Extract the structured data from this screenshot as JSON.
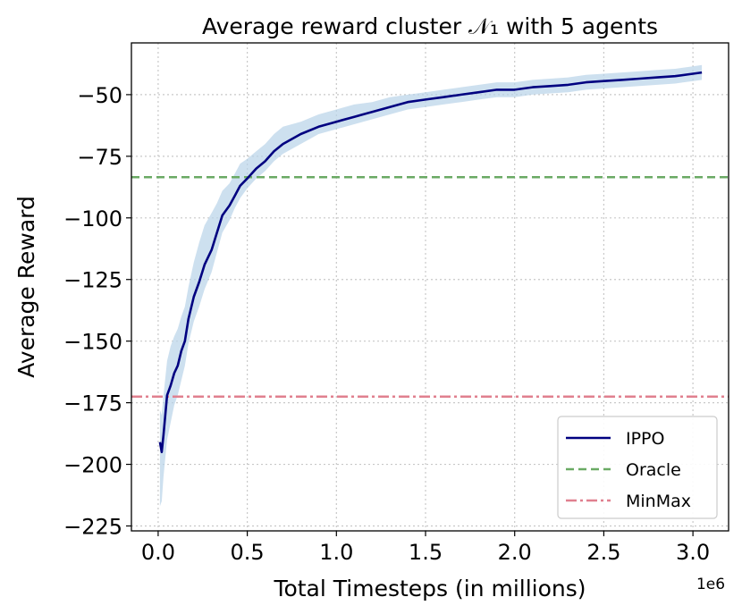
{
  "chart_data": {
    "type": "line",
    "title": "Average reward cluster 𝒩₁ with 5 agents",
    "xlabel": "Total Timesteps (in millions)",
    "ylabel": "Average Reward",
    "x_offset_label": "1e6",
    "xlim": [
      -0.15,
      3.2
    ],
    "ylim": [
      -227,
      -29
    ],
    "xticks": [
      0.0,
      0.5,
      1.0,
      1.5,
      2.0,
      2.5,
      3.0
    ],
    "xtick_labels": [
      "0.0",
      "0.5",
      "1.0",
      "1.5",
      "2.0",
      "2.5",
      "3.0"
    ],
    "yticks": [
      -225,
      -200,
      -175,
      -150,
      -125,
      -100,
      -75,
      -50
    ],
    "ytick_labels": [
      "−225",
      "−200",
      "−175",
      "−150",
      "−125",
      "−100",
      "−75",
      "−50"
    ],
    "grid": true,
    "legend_position": "lower-right",
    "colors": {
      "ippo": "#000080",
      "band": "#b8d3e8",
      "oracle": "#6aaa64",
      "minmax": "#e0808f"
    },
    "series": [
      {
        "name": "IPPO",
        "style": "solid",
        "x": [
          0.01,
          0.02,
          0.03,
          0.05,
          0.07,
          0.09,
          0.11,
          0.13,
          0.15,
          0.17,
          0.2,
          0.23,
          0.26,
          0.3,
          0.33,
          0.36,
          0.4,
          0.43,
          0.46,
          0.5,
          0.55,
          0.6,
          0.65,
          0.7,
          0.8,
          0.9,
          1.0,
          1.1,
          1.2,
          1.3,
          1.4,
          1.5,
          1.6,
          1.7,
          1.8,
          1.9,
          2.0,
          2.1,
          2.2,
          2.3,
          2.4,
          2.5,
          2.6,
          2.7,
          2.8,
          2.9,
          3.0,
          3.05
        ],
        "y": [
          -191,
          -195,
          -188,
          -172,
          -168,
          -163,
          -160,
          -154,
          -150,
          -141,
          -132,
          -126,
          -119,
          -113,
          -106,
          -99,
          -95,
          -91,
          -87,
          -84,
          -80,
          -77,
          -73,
          -70,
          -66,
          -63,
          -61,
          -59,
          -57,
          -55,
          -53,
          -52,
          -51,
          -50,
          -49,
          -48,
          -48,
          -47,
          -46.5,
          -46,
          -45,
          -44.5,
          -44,
          -43.5,
          -43,
          -42.5,
          -41.5,
          -41
        ],
        "band_lower": [
          -217,
          -215,
          -205,
          -190,
          -183,
          -176,
          -172,
          -166,
          -160,
          -151,
          -142,
          -136,
          -129,
          -122,
          -114,
          -106,
          -101,
          -96,
          -92,
          -88,
          -84,
          -81,
          -77,
          -74,
          -70,
          -66,
          -64,
          -62,
          -60,
          -58,
          -56,
          -55,
          -54,
          -53,
          -52,
          -51,
          -51,
          -50,
          -49.5,
          -49,
          -48,
          -47.5,
          -47,
          -46.5,
          -46,
          -45.5,
          -44.5,
          -44
        ],
        "band_upper": [
          -178,
          -180,
          -172,
          -158,
          -152,
          -148,
          -145,
          -140,
          -136,
          -128,
          -118,
          -110,
          -103,
          -98,
          -94,
          -89,
          -86,
          -82,
          -78,
          -76,
          -73,
          -70,
          -66,
          -63,
          -61,
          -58,
          -56,
          -54,
          -53,
          -51,
          -50,
          -49,
          -48,
          -47,
          -46,
          -45,
          -45,
          -44,
          -43.5,
          -43,
          -42,
          -41.5,
          -41,
          -40.5,
          -40,
          -39.5,
          -38.5,
          -38
        ]
      },
      {
        "name": "Oracle",
        "style": "dashed",
        "y_const": -83.5
      },
      {
        "name": "MinMax",
        "style": "dashdot",
        "y_const": -172.5
      }
    ]
  }
}
